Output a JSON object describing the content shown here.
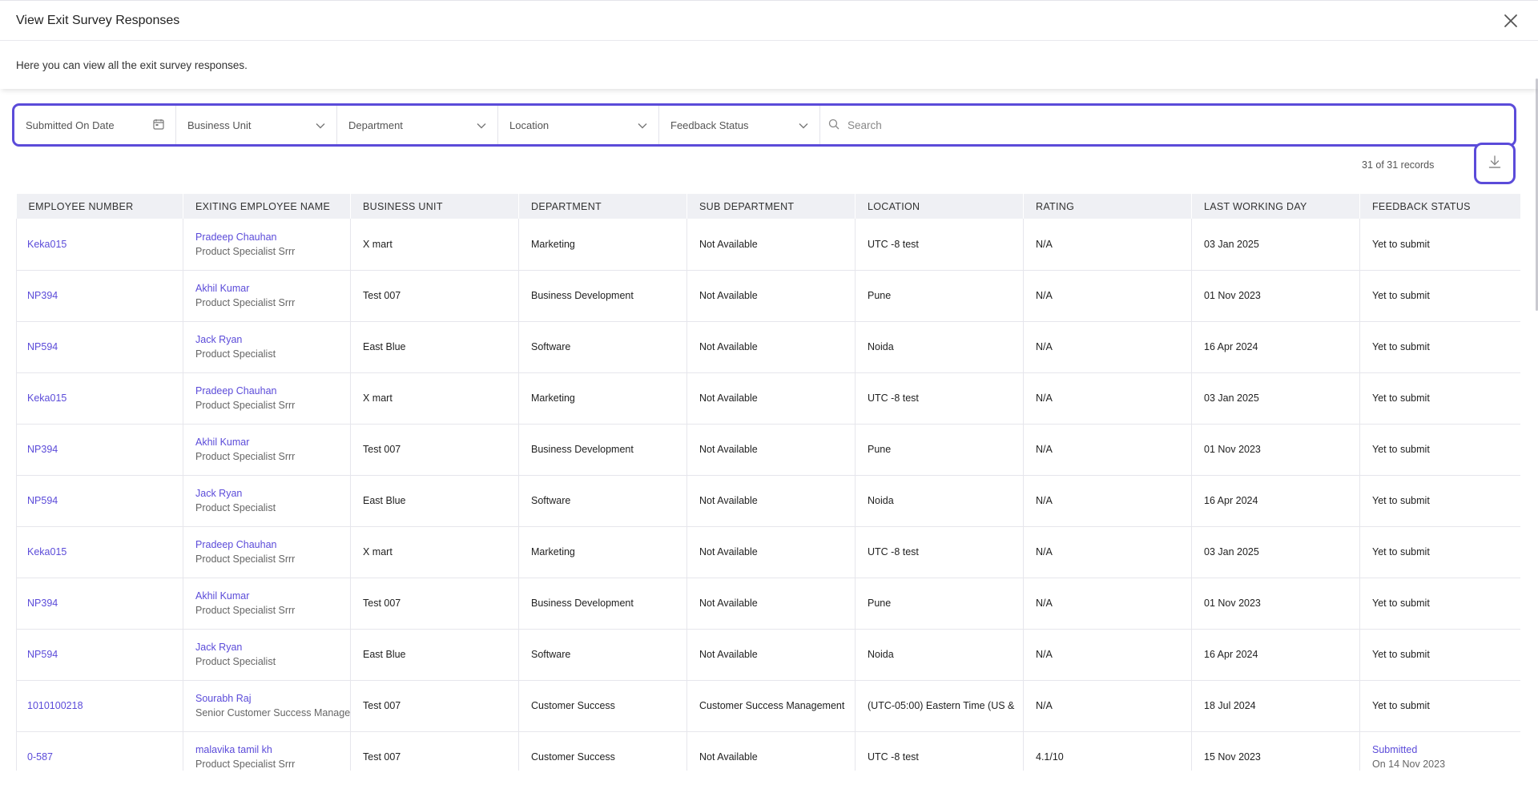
{
  "modal": {
    "title": "View Exit Survey Responses",
    "subtitle": "Here you can view all the exit survey responses."
  },
  "filters": {
    "submitted_on": "Submitted On Date",
    "business_unit": "Business Unit",
    "department": "Department",
    "location": "Location",
    "feedback_status": "Feedback Status",
    "search_placeholder": "Search"
  },
  "records_label": "31 of 31 records",
  "colors": {
    "accent": "#5b4bd9",
    "header_bg": "#eff0f4"
  },
  "table": {
    "columns": [
      "EMPLOYEE NUMBER",
      "EXITING EMPLOYEE NAME",
      "BUSINESS UNIT",
      "DEPARTMENT",
      "SUB DEPARTMENT",
      "LOCATION",
      "RATING",
      "LAST WORKING DAY",
      "FEEDBACK STATUS"
    ],
    "rows": [
      {
        "emp_no": "Keka015",
        "name": "Pradeep Chauhan",
        "designation": "Product Specialist Srrr",
        "bu": "X mart",
        "dept": "Marketing",
        "sub_dept": "Not Available",
        "location": "UTC -8 test",
        "rating": "N/A",
        "lwd": "03 Jan 2025",
        "status": "Yet to submit",
        "status_sub": ""
      },
      {
        "emp_no": "NP394",
        "name": "Akhil Kumar",
        "designation": "Product Specialist Srrr",
        "bu": "Test 007",
        "dept": "Business Development",
        "sub_dept": "Not Available",
        "location": "Pune",
        "rating": "N/A",
        "lwd": "01 Nov 2023",
        "status": "Yet to submit",
        "status_sub": ""
      },
      {
        "emp_no": "NP594",
        "name": "Jack Ryan",
        "designation": "Product Specialist",
        "bu": "East Blue",
        "dept": "Software",
        "sub_dept": "Not Available",
        "location": "Noida",
        "rating": "N/A",
        "lwd": "16 Apr 2024",
        "status": "Yet to submit",
        "status_sub": ""
      },
      {
        "emp_no": "Keka015",
        "name": "Pradeep Chauhan",
        "designation": "Product Specialist Srrr",
        "bu": "X mart",
        "dept": "Marketing",
        "sub_dept": "Not Available",
        "location": "UTC -8 test",
        "rating": "N/A",
        "lwd": "03 Jan 2025",
        "status": "Yet to submit",
        "status_sub": ""
      },
      {
        "emp_no": "NP394",
        "name": "Akhil Kumar",
        "designation": "Product Specialist Srrr",
        "bu": "Test 007",
        "dept": "Business Development",
        "sub_dept": "Not Available",
        "location": "Pune",
        "rating": "N/A",
        "lwd": "01 Nov 2023",
        "status": "Yet to submit",
        "status_sub": ""
      },
      {
        "emp_no": "NP594",
        "name": "Jack Ryan",
        "designation": "Product Specialist",
        "bu": "East Blue",
        "dept": "Software",
        "sub_dept": "Not Available",
        "location": "Noida",
        "rating": "N/A",
        "lwd": "16 Apr 2024",
        "status": "Yet to submit",
        "status_sub": ""
      },
      {
        "emp_no": "Keka015",
        "name": "Pradeep Chauhan",
        "designation": "Product Specialist Srrr",
        "bu": "X mart",
        "dept": "Marketing",
        "sub_dept": "Not Available",
        "location": "UTC -8 test",
        "rating": "N/A",
        "lwd": "03 Jan 2025",
        "status": "Yet to submit",
        "status_sub": ""
      },
      {
        "emp_no": "NP394",
        "name": "Akhil Kumar",
        "designation": "Product Specialist Srrr",
        "bu": "Test 007",
        "dept": "Business Development",
        "sub_dept": "Not Available",
        "location": "Pune",
        "rating": "N/A",
        "lwd": "01 Nov 2023",
        "status": "Yet to submit",
        "status_sub": ""
      },
      {
        "emp_no": "NP594",
        "name": "Jack Ryan",
        "designation": "Product Specialist",
        "bu": "East Blue",
        "dept": "Software",
        "sub_dept": "Not Available",
        "location": "Noida",
        "rating": "N/A",
        "lwd": "16 Apr 2024",
        "status": "Yet to submit",
        "status_sub": ""
      },
      {
        "emp_no": "1010100218",
        "name": "Sourabh Raj",
        "designation": "Senior Customer Success Manage",
        "bu": "Test 007",
        "dept": "Customer Success",
        "sub_dept": "Customer Success Management",
        "location": "(UTC-05:00) Eastern Time (US &",
        "rating": "N/A",
        "lwd": "18 Jul 2024",
        "status": "Yet to submit",
        "status_sub": ""
      },
      {
        "emp_no": "0-587",
        "name": "malavika tamil kh",
        "designation": "Product Specialist Srrr",
        "bu": "Test 007",
        "dept": "Customer Success",
        "sub_dept": "Not Available",
        "location": "UTC -8 test",
        "rating": "4.1/10",
        "lwd": "15 Nov 2023",
        "status": "Submitted",
        "status_sub": "On 14 Nov 2023"
      }
    ]
  }
}
